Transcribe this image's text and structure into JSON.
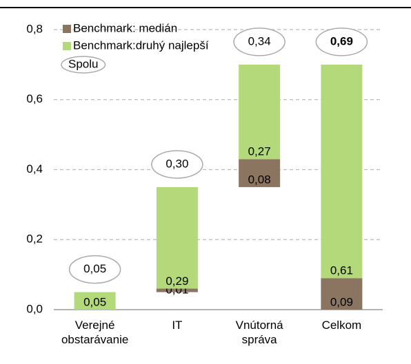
{
  "chart_data": {
    "type": "waterfall",
    "categories": [
      "Verejné obstarávanie",
      "IT",
      "Vnútorná správa",
      "Celkom"
    ],
    "series": [
      {
        "name": "Benchmark: medián",
        "color": "#8c7560",
        "values": [
          null,
          0.01,
          0.08,
          0.09
        ],
        "value_labels": [
          null,
          "0,01",
          "0,08",
          "0,09"
        ]
      },
      {
        "name": "Benchmark:druhý najlepší",
        "color": "#b3d97a",
        "values": [
          0.05,
          0.29,
          0.27,
          0.61
        ],
        "value_labels": [
          "0,05",
          "0,29",
          "0,27",
          "0,61"
        ]
      },
      {
        "name": "Spolu",
        "style": "ellipse",
        "values": [
          0.05,
          0.3,
          0.34,
          0.69
        ],
        "value_labels": [
          "0,05",
          "0,30",
          "0,34",
          "0,69"
        ],
        "bold": [
          false,
          false,
          false,
          true
        ]
      }
    ],
    "ylim": [
      0,
      0.8
    ],
    "yticks": [
      {
        "value": 0,
        "label": "0,0"
      },
      {
        "value": 0.2,
        "label": "0,2"
      },
      {
        "value": 0.4,
        "label": "0,4"
      },
      {
        "value": 0.6,
        "label": "0,6"
      },
      {
        "value": 0.8,
        "label": "0,8"
      }
    ],
    "grid": true,
    "legend": "top-left"
  }
}
